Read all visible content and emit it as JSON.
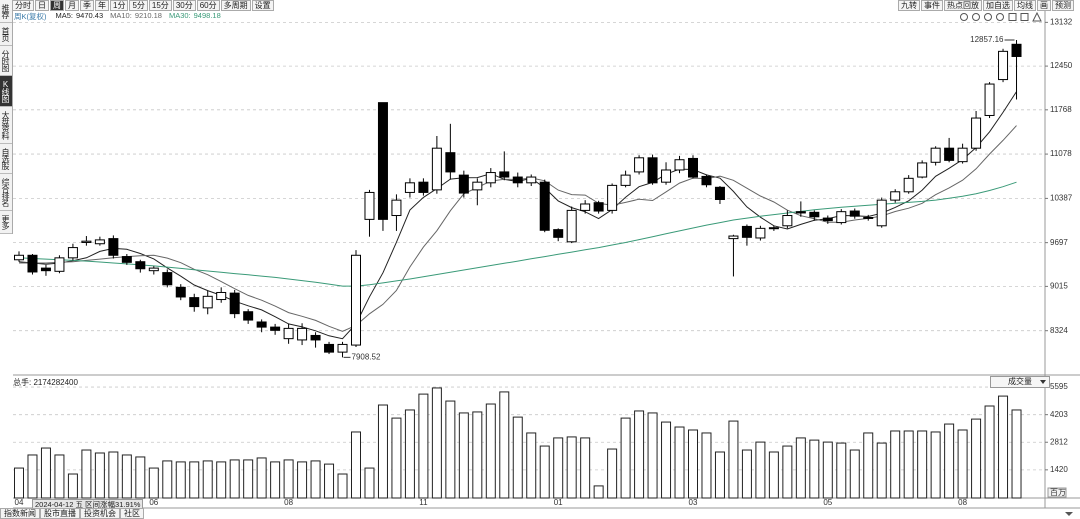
{
  "ui": {
    "periods": [
      "分时",
      "日",
      "周",
      "月",
      "季",
      "年",
      "1分",
      "5分",
      "15分",
      "30分",
      "60分",
      "多周期",
      "设置"
    ],
    "period_selected": 2,
    "tools": [
      "九转",
      "事件",
      "热点回放",
      "加自选",
      "均线",
      "画",
      "预测"
    ],
    "sidebar": [
      "推荐",
      "首页",
      "分时图",
      "K线图",
      "大盘资料",
      "自选股",
      "综合排名",
      "更多"
    ],
    "sidebar_selected": 3,
    "tabs": [
      "指数新闻",
      "股市直播",
      "投资机会",
      "社区"
    ],
    "cursor_label": "2024-04-12 五 区间涨幅31.91%"
  },
  "chart_data": [
    {
      "type": "candlestick",
      "title": "周K(复权)",
      "categories": [
        "04",
        null,
        null,
        null,
        null,
        null,
        null,
        null,
        null,
        null,
        "06",
        null,
        null,
        null,
        null,
        null,
        null,
        null,
        null,
        null,
        "08",
        null,
        null,
        null,
        null,
        null,
        null,
        null,
        null,
        null,
        "11",
        null,
        null,
        null,
        null,
        null,
        null,
        null,
        null,
        null,
        "01",
        null,
        null,
        null,
        null,
        null,
        null,
        null,
        null,
        null,
        "03",
        null,
        null,
        null,
        null,
        null,
        null,
        null,
        null,
        null,
        "05",
        null,
        null,
        null,
        null,
        null,
        null,
        null,
        null,
        null,
        "08",
        null,
        null,
        null,
        null
      ],
      "open": [
        9430,
        9500,
        9300,
        9250,
        9460,
        9700,
        9680,
        9760,
        9480,
        9400,
        9260,
        9230,
        9000,
        8840,
        8680,
        8810,
        8910,
        8620,
        8460,
        8380,
        8200,
        8180,
        8250,
        8110,
        7990,
        8100,
        10060,
        11880,
        10120,
        10480,
        10640,
        10520,
        11100,
        10750,
        10520,
        10630,
        10800,
        10720,
        10630,
        10640,
        9900,
        9710,
        10200,
        10320,
        10200,
        10590,
        10800,
        11020,
        10640,
        10830,
        11010,
        10730,
        10560,
        9760,
        9950,
        9770,
        9920,
        9960,
        10180,
        10170,
        10080,
        10010,
        10190,
        10080,
        9960,
        10360,
        10490,
        10720,
        10950,
        11170,
        10960,
        11170,
        11680,
        12240,
        12790
      ],
      "high": [
        9560,
        9520,
        9350,
        9500,
        9680,
        9800,
        9790,
        9810,
        9520,
        9430,
        9330,
        9280,
        9050,
        8900,
        8950,
        9000,
        8960,
        8660,
        8500,
        8430,
        8430,
        8440,
        8300,
        8150,
        8150,
        9580,
        10520,
        11880,
        10450,
        10700,
        10700,
        11360,
        11550,
        10820,
        10700,
        10860,
        11120,
        10790,
        10760,
        10680,
        9920,
        10260,
        10360,
        10350,
        10620,
        10820,
        11060,
        11070,
        10950,
        11050,
        11060,
        10760,
        10580,
        9820,
        9980,
        9960,
        9960,
        10200,
        10340,
        10200,
        10120,
        10220,
        10230,
        10130,
        10400,
        10530,
        10750,
        10980,
        11200,
        11330,
        11240,
        11750,
        12200,
        12720,
        12857.16
      ],
      "low": [
        9400,
        9200,
        9180,
        9220,
        9420,
        9650,
        9650,
        9450,
        9350,
        9230,
        9200,
        9000,
        8800,
        8620,
        8580,
        8760,
        8520,
        8430,
        8300,
        8260,
        8120,
        8100,
        8060,
        7960,
        7908.52,
        8070,
        9790,
        9880,
        9880,
        10400,
        10430,
        10460,
        10680,
        10400,
        10280,
        10560,
        10670,
        10560,
        10580,
        9860,
        9720,
        9690,
        10150,
        10150,
        10150,
        10560,
        10760,
        10600,
        10600,
        10780,
        10700,
        10560,
        10300,
        9170,
        9650,
        9730,
        9880,
        9920,
        10100,
        10040,
        9990,
        9980,
        10070,
        10040,
        9930,
        10320,
        10460,
        10700,
        10900,
        10950,
        10930,
        11130,
        11640,
        12200,
        11930
      ],
      "close": [
        9500,
        9240,
        9260,
        9460,
        9620,
        9720,
        9740,
        9500,
        9390,
        9290,
        9300,
        9040,
        8850,
        8700,
        8860,
        8920,
        8590,
        8490,
        8380,
        8330,
        8360,
        8360,
        8180,
        7990,
        8110,
        9500,
        10480,
        10060,
        10360,
        10630,
        10480,
        11170,
        10800,
        10470,
        10640,
        10790,
        10720,
        10630,
        10720,
        9890,
        9780,
        10200,
        10300,
        10190,
        10590,
        10750,
        11020,
        10630,
        10830,
        10990,
        10720,
        10600,
        10370,
        9800,
        9780,
        9920,
        9930,
        10120,
        10160,
        10100,
        10040,
        10180,
        10110,
        10090,
        10360,
        10490,
        10700,
        10940,
        11170,
        10980,
        11170,
        11640,
        12170,
        12680,
        12600
      ],
      "series": [
        {
          "name": "MA5:",
          "color": "#222222",
          "legend_value": 9470.43,
          "values": [
            9400,
            9380,
            9360,
            9380,
            9416,
            9460,
            9560,
            9608,
            9594,
            9528,
            9444,
            9304,
            9174,
            9036,
            8950,
            8874,
            8784,
            8712,
            8648,
            8542,
            8430,
            8384,
            8322,
            8244,
            8200,
            8428,
            8852,
            9228,
            9702,
            10206,
            10402,
            10540,
            10688,
            10710,
            10712,
            10774,
            10684,
            10650,
            10700,
            10550,
            10348,
            10244,
            10178,
            10072,
            10212,
            10406,
            10570,
            10636,
            10764,
            10844,
            10838,
            10754,
            10702,
            10496,
            10254,
            10094,
            9960,
            9910,
            9982,
            10046,
            10070,
            10120,
            10118,
            10104,
            10156,
            10246,
            10350,
            10516,
            10732,
            10856,
            10992,
            11180,
            11426,
            11728,
            12052
          ]
        },
        {
          "name": "MA10:",
          "color": "#666666",
          "legend_value": 9210.18,
          "values": [
            9380,
            9380,
            9380,
            9390,
            9400,
            9420,
            9440,
            9460,
            9480,
            9494,
            9502,
            9456,
            9384,
            9282,
            9197,
            9089,
            8979,
            8874,
            8799,
            8708,
            8607,
            8548,
            8485,
            8393,
            8315,
            8406,
            8587,
            8736,
            8951,
            9317,
            9627,
            9884,
            10195,
            10458,
            10557,
            10657,
            10686,
            10680,
            10706,
            10662,
            10516,
            10447,
            10439,
            10311,
            10280,
            10325,
            10374,
            10354,
            10488,
            10625,
            10704,
            10695,
            10733,
            10670,
            10546,
            10424,
            10331,
            10203,
            10118,
            10070,
            10015,
            10015,
            10050,
            10075,
            10113,
            10183,
            10234,
            10310,
            10444,
            10551,
            10671,
            10848,
            11079,
            11292,
            11522
          ]
        },
        {
          "name": "MA30:",
          "color": "#3a9a78",
          "legend_value": 9498.18,
          "values": [
            9460,
            9450,
            9440,
            9430,
            9420,
            9410,
            9395,
            9380,
            9365,
            9350,
            9335,
            9315,
            9295,
            9275,
            9255,
            9235,
            9215,
            9195,
            9175,
            9155,
            9130,
            9105,
            9080,
            9050,
            9020,
            9020,
            9040,
            9070,
            9100,
            9130,
            9165,
            9200,
            9235,
            9270,
            9305,
            9340,
            9375,
            9410,
            9445,
            9480,
            9515,
            9550,
            9585,
            9620,
            9660,
            9700,
            9745,
            9790,
            9835,
            9880,
            9925,
            9970,
            10010,
            10050,
            10080,
            10110,
            10135,
            10160,
            10185,
            10210,
            10230,
            10250,
            10265,
            10280,
            10295,
            10310,
            10325,
            10340,
            10360,
            10390,
            10420,
            10460,
            10510,
            10570,
            10640
          ]
        }
      ],
      "max_label": 12857.16,
      "min_label": 7908.52,
      "ylim": [
        7680,
        13200
      ],
      "yticks": [
        8324,
        9015,
        9697,
        10387,
        11078,
        11768,
        12450,
        13132
      ],
      "grid": true
    },
    {
      "type": "bar",
      "title": "总手: 2174282400",
      "selector": "成交量",
      "unit": "百万",
      "color": "#ffffff",
      "values": [
        1510,
        2170,
        2520,
        2170,
        1210,
        2420,
        2270,
        2320,
        2170,
        2070,
        1510,
        1870,
        1820,
        1820,
        1870,
        1820,
        1920,
        1920,
        2020,
        1820,
        1920,
        1820,
        1870,
        1710,
        1210,
        3330,
        1510,
        4690,
        4030,
        4440,
        5240,
        5550,
        4890,
        4290,
        4340,
        4740,
        5350,
        4080,
        3280,
        2620,
        3030,
        3080,
        3030,
        610,
        2470,
        4030,
        4390,
        4290,
        3830,
        3580,
        3430,
        3280,
        2320,
        3880,
        2420,
        2820,
        2320,
        2620,
        3030,
        2920,
        2820,
        2770,
        2420,
        3280,
        2770,
        3380,
        3380,
        3380,
        3330,
        3730,
        3430,
        3980,
        4640,
        5140,
        4440
      ],
      "ylim": [
        0,
        5800
      ],
      "yticks": [
        1420,
        2812,
        4203,
        5595
      ],
      "grid": true
    }
  ]
}
